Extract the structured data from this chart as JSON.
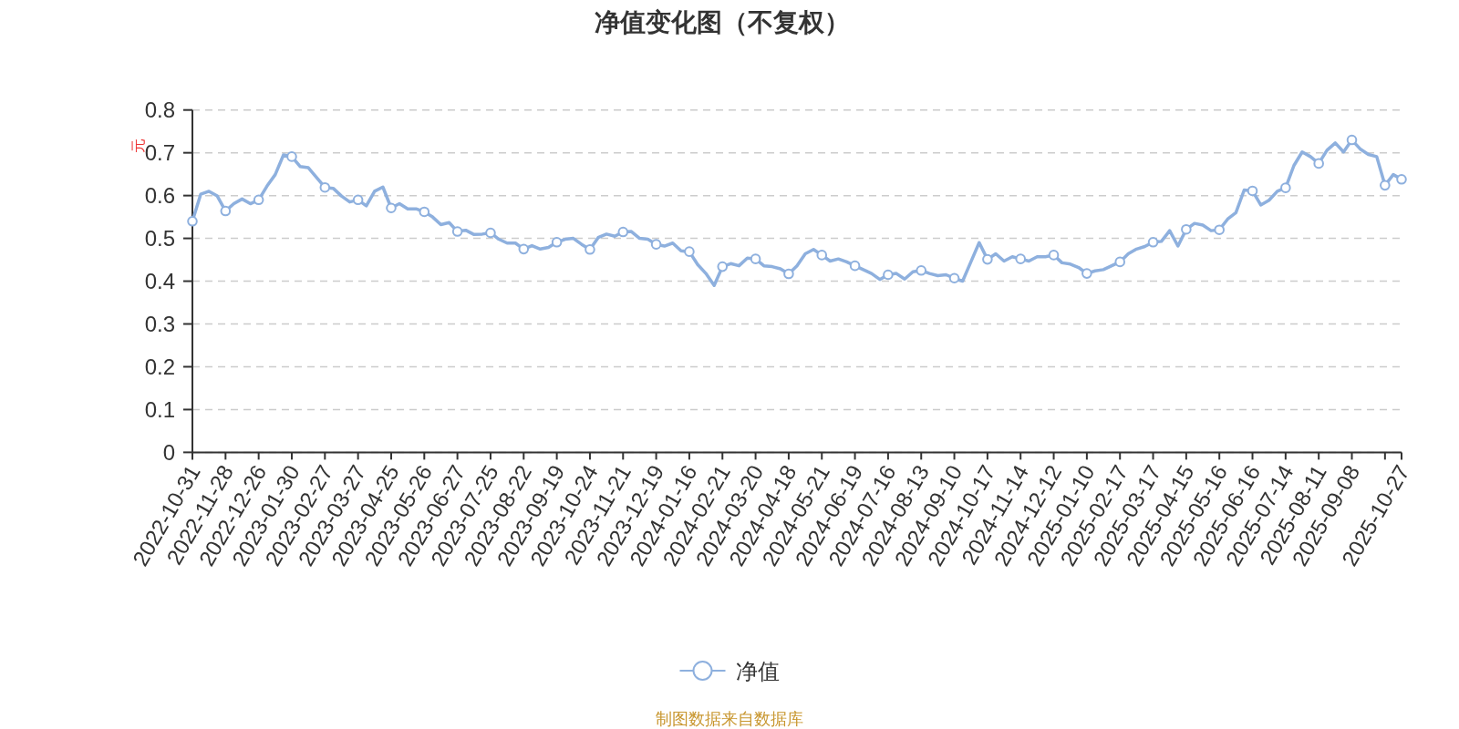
{
  "chart_data": {
    "type": "line",
    "title": "净值变化图（不复权）",
    "ylabel": "元",
    "annotations": [
      "制图数据来自数据库"
    ],
    "categories": [
      "2022-10-31",
      null,
      null,
      null,
      "2022-11-28",
      null,
      null,
      null,
      "2022-12-26",
      null,
      null,
      null,
      "2023-01-30",
      null,
      null,
      null,
      "2023-02-27",
      null,
      null,
      null,
      "2023-03-27",
      null,
      null,
      null,
      "2023-04-25",
      null,
      null,
      null,
      "2023-05-26",
      null,
      null,
      null,
      "2023-06-27",
      null,
      null,
      null,
      "2023-07-25",
      null,
      null,
      null,
      "2023-08-22",
      null,
      null,
      null,
      "2023-09-19",
      null,
      null,
      null,
      "2023-10-24",
      null,
      null,
      null,
      "2023-11-21",
      null,
      null,
      null,
      "2023-12-19",
      null,
      null,
      null,
      "2024-01-16",
      null,
      null,
      null,
      "2024-02-21",
      null,
      null,
      null,
      "2024-03-20",
      null,
      null,
      null,
      "2024-04-18",
      null,
      null,
      null,
      "2024-05-21",
      null,
      null,
      null,
      "2024-06-19",
      null,
      null,
      null,
      "2024-07-16",
      null,
      null,
      null,
      "2024-08-13",
      null,
      null,
      null,
      "2024-09-10",
      null,
      null,
      null,
      "2024-10-17",
      null,
      null,
      null,
      "2024-11-14",
      null,
      null,
      null,
      "2024-12-12",
      null,
      null,
      null,
      "2025-01-10",
      null,
      null,
      null,
      "2025-02-17",
      null,
      null,
      null,
      "2025-03-17",
      null,
      null,
      null,
      "2025-04-15",
      null,
      null,
      null,
      "2025-05-16",
      null,
      null,
      null,
      "2025-06-16",
      null,
      null,
      null,
      "2025-07-14",
      null,
      null,
      null,
      "2025-08-11",
      null,
      null,
      null,
      "2025-09-08",
      null,
      null,
      null,
      null,
      null,
      "2025-10-27"
    ],
    "series": [
      {
        "name": "净值",
        "color": "#8eb0de",
        "values": [
          0.54,
          0.603,
          0.61,
          0.599,
          0.564,
          0.581,
          0.592,
          0.581,
          0.59,
          0.622,
          0.649,
          0.695,
          0.691,
          0.668,
          0.665,
          0.642,
          0.619,
          0.617,
          0.599,
          0.585,
          0.59,
          0.576,
          0.61,
          0.62,
          0.571,
          0.581,
          0.569,
          0.569,
          0.562,
          0.55,
          0.532,
          0.537,
          0.516,
          0.519,
          0.509,
          0.51,
          0.513,
          0.498,
          0.489,
          0.489,
          0.475,
          0.483,
          0.475,
          0.479,
          0.491,
          0.498,
          0.5,
          0.486,
          0.474,
          0.502,
          0.51,
          0.505,
          0.515,
          0.516,
          0.5,
          0.498,
          0.486,
          0.482,
          0.489,
          0.471,
          0.469,
          0.439,
          0.418,
          0.39,
          0.434,
          0.441,
          0.436,
          0.454,
          0.452,
          0.436,
          0.434,
          0.429,
          0.417,
          0.436,
          0.464,
          0.474,
          0.461,
          0.447,
          0.452,
          0.445,
          0.436,
          0.427,
          0.418,
          0.404,
          0.415,
          0.418,
          0.405,
          0.422,
          0.425,
          0.418,
          0.413,
          0.415,
          0.407,
          0.4,
          0.445,
          0.49,
          0.451,
          0.464,
          0.447,
          0.457,
          0.452,
          0.447,
          0.457,
          0.457,
          0.461,
          0.443,
          0.44,
          0.432,
          0.418,
          0.424,
          0.427,
          0.436,
          0.445,
          0.464,
          0.475,
          0.481,
          0.491,
          0.493,
          0.518,
          0.482,
          0.521,
          0.535,
          0.531,
          0.518,
          0.52,
          0.545,
          0.56,
          0.613,
          0.611,
          0.578,
          0.589,
          0.61,
          0.618,
          0.67,
          0.702,
          0.691,
          0.675,
          0.706,
          0.723,
          0.702,
          0.73,
          0.709,
          0.696,
          0.691,
          0.624,
          0.649,
          0.638
        ]
      }
    ],
    "ylim": [
      0,
      0.8
    ],
    "yticks": [
      0,
      0.1,
      0.2,
      0.3,
      0.4,
      0.5,
      0.6,
      0.7,
      0.8
    ],
    "grid": "y",
    "legend": "bottom",
    "line_style": "solid"
  }
}
